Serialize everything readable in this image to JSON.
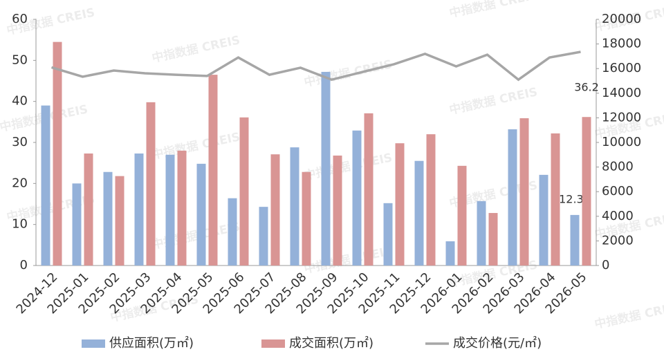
{
  "chart_data": {
    "type": "bar-line",
    "watermark": "中指数据 CREIS",
    "categories": [
      "2024-12",
      "2025-01",
      "2025-02",
      "2025-03",
      "2025-04",
      "2025-05",
      "2025-06",
      "2025-07",
      "2025-08",
      "2025-09",
      "2025-10",
      "2025-11",
      "2025-12",
      "2026-01",
      "2026-02",
      "2026-03",
      "2026-04",
      "2026-05"
    ],
    "series": [
      {
        "name": "供应面积(万㎡)",
        "color": "#94b1d9",
        "type": "bar",
        "values": [
          39,
          20,
          22.8,
          27.3,
          27,
          24.8,
          16.4,
          14.3,
          28.8,
          47.2,
          32.9,
          15.2,
          25.5,
          5.9,
          15.7,
          33.2,
          22.1,
          12.32
        ],
        "value_labels": [
          null,
          null,
          null,
          null,
          null,
          null,
          null,
          null,
          null,
          null,
          null,
          null,
          null,
          null,
          null,
          null,
          null,
          "12.32"
        ]
      },
      {
        "name": "成交面积(万㎡)",
        "color": "#d99594",
        "type": "bar",
        "values": [
          54.5,
          27.3,
          21.8,
          39.8,
          28,
          46.5,
          36.1,
          27.1,
          22.8,
          26.8,
          37.1,
          29.8,
          32,
          24.3,
          12.8,
          35.9,
          32.2,
          36.2
        ],
        "value_labels": [
          null,
          null,
          null,
          null,
          null,
          null,
          null,
          null,
          null,
          null,
          null,
          null,
          null,
          null,
          null,
          null,
          null,
          "36.2"
        ]
      },
      {
        "name": "成交价格(元/㎡)",
        "color": "#a6a6a6",
        "type": "line",
        "axis": "y2",
        "values": [
          16100,
          15340,
          15840,
          15620,
          15500,
          15400,
          16900,
          15500,
          16070,
          15100,
          15730,
          16350,
          17200,
          16180,
          17130,
          15100,
          16900,
          17360
        ]
      }
    ],
    "ylim": [
      0,
      60
    ],
    "yticks": [
      0,
      10,
      20,
      30,
      40,
      50,
      60
    ],
    "y2lim": [
      0,
      20000
    ],
    "y2ticks": [
      0,
      2000,
      4000,
      6000,
      8000,
      10000,
      12000,
      14000,
      16000,
      18000,
      20000
    ],
    "legend": "bottom"
  }
}
